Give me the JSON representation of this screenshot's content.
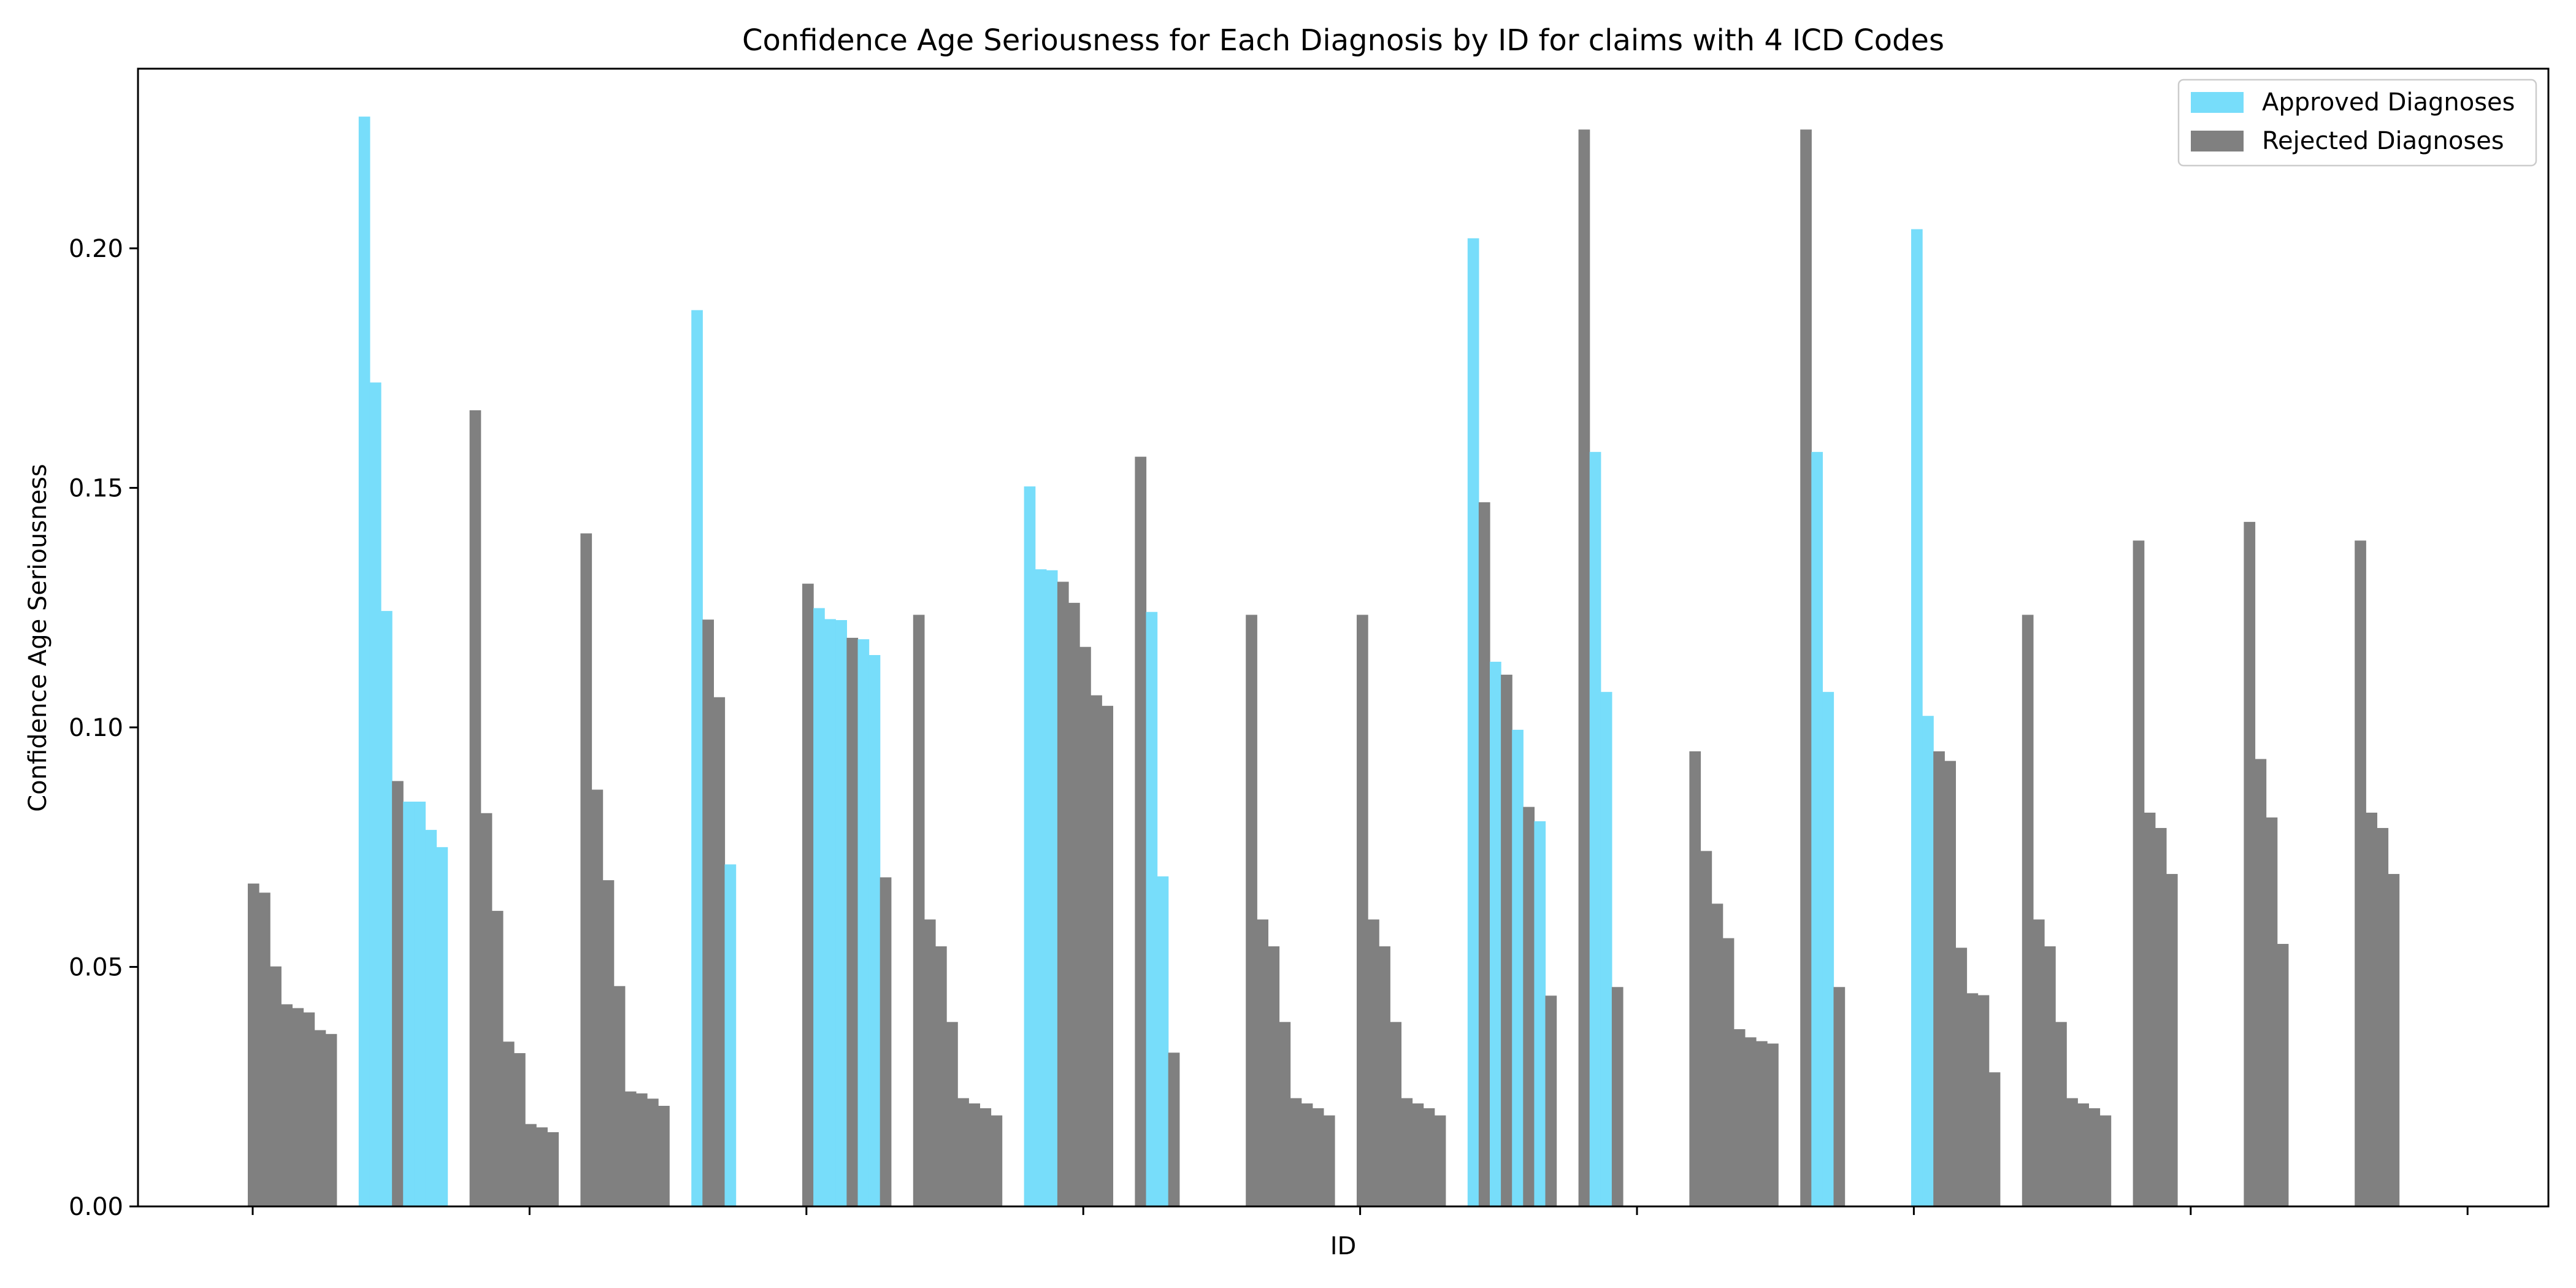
{
  "chart_data": {
    "type": "bar",
    "title": "Confidence Age Seriousness for Each Diagnosis by ID for claims with 4 ICD Codes",
    "xlabel": "ID",
    "ylabel": "Confidence Age Seriousness",
    "ylim": [
      0,
      0.2375
    ],
    "yticks": [
      "0.00",
      "0.05",
      "0.10",
      "0.15",
      "0.20"
    ],
    "grid": false,
    "legend_position": "top-right",
    "series": [
      {
        "name": "Approved Diagnoses",
        "color": "#77DDFA"
      },
      {
        "name": "Rejected Diagnoses",
        "color": "#808080"
      }
    ],
    "groups": [
      {
        "bars": [
          {
            "v": 0.0674,
            "s": 1
          },
          {
            "v": 0.0655,
            "s": 1
          },
          {
            "v": 0.0501,
            "s": 1
          },
          {
            "v": 0.0422,
            "s": 1
          },
          {
            "v": 0.0414,
            "s": 1
          },
          {
            "v": 0.0405,
            "s": 1
          },
          {
            "v": 0.0368,
            "s": 1
          },
          {
            "v": 0.036,
            "s": 1
          }
        ]
      },
      {
        "bars": [
          {
            "v": 0.2275,
            "s": 0
          },
          {
            "v": 0.172,
            "s": 0
          },
          {
            "v": 0.1243,
            "s": 0
          },
          {
            "v": 0.0888,
            "s": 1
          },
          {
            "v": 0.0845,
            "s": 0
          },
          {
            "v": 0.0845,
            "s": 0
          },
          {
            "v": 0.0786,
            "s": 0
          },
          {
            "v": 0.075,
            "s": 0
          }
        ]
      },
      {
        "bars": [
          {
            "v": 0.1662,
            "s": 1
          },
          {
            "v": 0.0821,
            "s": 1
          },
          {
            "v": 0.0617,
            "s": 1
          },
          {
            "v": 0.0344,
            "s": 1
          },
          {
            "v": 0.032,
            "s": 1
          },
          {
            "v": 0.0172,
            "s": 1
          },
          {
            "v": 0.0165,
            "s": 1
          },
          {
            "v": 0.0155,
            "s": 1
          }
        ]
      },
      {
        "bars": [
          {
            "v": 0.1405,
            "s": 1
          },
          {
            "v": 0.087,
            "s": 1
          },
          {
            "v": 0.0681,
            "s": 1
          },
          {
            "v": 0.046,
            "s": 1
          },
          {
            "v": 0.024,
            "s": 1
          },
          {
            "v": 0.0236,
            "s": 1
          },
          {
            "v": 0.0225,
            "s": 1
          },
          {
            "v": 0.021,
            "s": 1
          }
        ]
      },
      {
        "bars": [
          {
            "v": 0.1871,
            "s": 0
          },
          {
            "v": 0.1225,
            "s": 1
          },
          {
            "v": 0.1063,
            "s": 1
          },
          {
            "v": 0.0714,
            "s": 0
          }
        ]
      },
      {
        "bars": [
          {
            "v": 0.13,
            "s": 1
          },
          {
            "v": 0.1249,
            "s": 0
          },
          {
            "v": 0.1226,
            "s": 0
          },
          {
            "v": 0.1224,
            "s": 0
          },
          {
            "v": 0.1187,
            "s": 1
          },
          {
            "v": 0.1184,
            "s": 0
          },
          {
            "v": 0.1151,
            "s": 0
          },
          {
            "v": 0.0687,
            "s": 1
          }
        ]
      },
      {
        "bars": [
          {
            "v": 0.1235,
            "s": 1
          },
          {
            "v": 0.0599,
            "s": 1
          },
          {
            "v": 0.0543,
            "s": 1
          },
          {
            "v": 0.0385,
            "s": 1
          },
          {
            "v": 0.0226,
            "s": 1
          },
          {
            "v": 0.0215,
            "s": 1
          },
          {
            "v": 0.0205,
            "s": 1
          },
          {
            "v": 0.019,
            "s": 1
          }
        ]
      },
      {
        "bars": [
          {
            "v": 0.1503,
            "s": 0
          },
          {
            "v": 0.133,
            "s": 0
          },
          {
            "v": 0.1328,
            "s": 0
          },
          {
            "v": 0.1304,
            "s": 1
          },
          {
            "v": 0.126,
            "s": 1
          },
          {
            "v": 0.1168,
            "s": 1
          },
          {
            "v": 0.1067,
            "s": 1
          },
          {
            "v": 0.1045,
            "s": 1
          }
        ]
      },
      {
        "bars": [
          {
            "v": 0.1565,
            "s": 1
          },
          {
            "v": 0.1241,
            "s": 0
          },
          {
            "v": 0.0689,
            "s": 0
          },
          {
            "v": 0.0321,
            "s": 1
          }
        ]
      },
      {
        "bars": [
          {
            "v": 0.1235,
            "s": 1
          },
          {
            "v": 0.0599,
            "s": 1
          },
          {
            "v": 0.0543,
            "s": 1
          },
          {
            "v": 0.0385,
            "s": 1
          },
          {
            "v": 0.0226,
            "s": 1
          },
          {
            "v": 0.0215,
            "s": 1
          },
          {
            "v": 0.0205,
            "s": 1
          },
          {
            "v": 0.019,
            "s": 1
          }
        ]
      },
      {
        "bars": [
          {
            "v": 0.1235,
            "s": 1
          },
          {
            "v": 0.0599,
            "s": 1
          },
          {
            "v": 0.0543,
            "s": 1
          },
          {
            "v": 0.0385,
            "s": 1
          },
          {
            "v": 0.0226,
            "s": 1
          },
          {
            "v": 0.0215,
            "s": 1
          },
          {
            "v": 0.0205,
            "s": 1
          },
          {
            "v": 0.019,
            "s": 1
          }
        ]
      },
      {
        "bars": [
          {
            "v": 0.2021,
            "s": 0
          },
          {
            "v": 0.147,
            "s": 1
          },
          {
            "v": 0.1137,
            "s": 0
          },
          {
            "v": 0.111,
            "s": 1
          },
          {
            "v": 0.0995,
            "s": 0
          },
          {
            "v": 0.0834,
            "s": 1
          },
          {
            "v": 0.0804,
            "s": 0
          },
          {
            "v": 0.044,
            "s": 1
          }
        ]
      },
      {
        "bars": [
          {
            "v": 0.2248,
            "s": 1
          },
          {
            "v": 0.1575,
            "s": 0
          },
          {
            "v": 0.1074,
            "s": 0
          },
          {
            "v": 0.0458,
            "s": 1
          }
        ]
      },
      {
        "bars": [
          {
            "v": 0.095,
            "s": 1
          },
          {
            "v": 0.0742,
            "s": 1
          },
          {
            "v": 0.0632,
            "s": 1
          },
          {
            "v": 0.056,
            "s": 1
          },
          {
            "v": 0.037,
            "s": 1
          },
          {
            "v": 0.0353,
            "s": 1
          },
          {
            "v": 0.0345,
            "s": 1
          },
          {
            "v": 0.034,
            "s": 1
          }
        ]
      },
      {
        "bars": [
          {
            "v": 0.2248,
            "s": 1
          },
          {
            "v": 0.1575,
            "s": 0
          },
          {
            "v": 0.1074,
            "s": 0
          },
          {
            "v": 0.0458,
            "s": 1
          }
        ]
      },
      {
        "bars": [
          {
            "v": 0.204,
            "s": 0
          },
          {
            "v": 0.1024,
            "s": 0
          },
          {
            "v": 0.095,
            "s": 1
          },
          {
            "v": 0.093,
            "s": 1
          },
          {
            "v": 0.054,
            "s": 1
          },
          {
            "v": 0.0445,
            "s": 1
          },
          {
            "v": 0.0441,
            "s": 1
          },
          {
            "v": 0.028,
            "s": 1
          }
        ]
      },
      {
        "bars": [
          {
            "v": 0.1235,
            "s": 1
          },
          {
            "v": 0.0599,
            "s": 1
          },
          {
            "v": 0.0543,
            "s": 1
          },
          {
            "v": 0.0385,
            "s": 1
          },
          {
            "v": 0.0226,
            "s": 1
          },
          {
            "v": 0.0215,
            "s": 1
          },
          {
            "v": 0.0205,
            "s": 1
          },
          {
            "v": 0.019,
            "s": 1
          }
        ]
      },
      {
        "bars": [
          {
            "v": 0.139,
            "s": 1
          },
          {
            "v": 0.0822,
            "s": 1
          },
          {
            "v": 0.079,
            "s": 1
          },
          {
            "v": 0.0694,
            "s": 1
          }
        ]
      },
      {
        "bars": [
          {
            "v": 0.1429,
            "s": 1
          },
          {
            "v": 0.0934,
            "s": 1
          },
          {
            "v": 0.0812,
            "s": 1
          },
          {
            "v": 0.0548,
            "s": 1
          }
        ]
      },
      {
        "bars": [
          {
            "v": 0.139,
            "s": 1
          },
          {
            "v": 0.0822,
            "s": 1
          },
          {
            "v": 0.079,
            "s": 1
          },
          {
            "v": 0.0694,
            "s": 1
          }
        ]
      }
    ]
  }
}
